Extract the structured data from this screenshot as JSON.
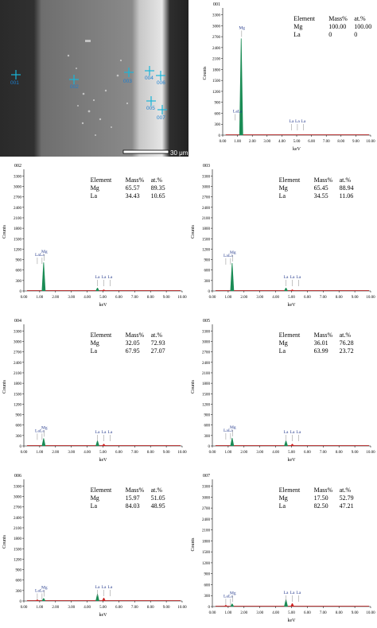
{
  "sem_image": {
    "scale_label": "30 μm",
    "points": [
      {
        "label": "001"
      },
      {
        "label": "002"
      },
      {
        "label": "003"
      },
      {
        "label": "004"
      },
      {
        "label": "005"
      },
      {
        "label": "006"
      },
      {
        "label": "007"
      }
    ],
    "colors": {
      "marker": "#19b6d9",
      "label": "#1b7fd0"
    }
  },
  "chart_data": [
    {
      "type": "bar",
      "panel_label": "001",
      "xlabel": "keV",
      "ylabel": "Counts",
      "x_ticks": [
        "0.00",
        "1.00",
        "2.00",
        "3.00",
        "4.00",
        "5.00",
        "6.00",
        "7.00",
        "8.00",
        "9.00",
        "10.00"
      ],
      "y_ticks": [
        "0",
        "300",
        "600",
        "900",
        "1200",
        "1500",
        "1800",
        "2100",
        "2400",
        "2700",
        "3000",
        "3300"
      ],
      "xlim": [
        0,
        10
      ],
      "ylim": [
        0,
        3400
      ],
      "table": {
        "header": [
          "Element",
          "Mass%",
          "at.%"
        ],
        "rows": [
          [
            "Mg",
            "100.00",
            "100.00"
          ],
          [
            "La",
            "0",
            "0"
          ]
        ]
      },
      "peaks": [
        {
          "label": "Mg",
          "x": 1.25,
          "counts": 2650,
          "color": "#1a8c55"
        }
      ],
      "line_markers": [
        {
          "label": "La",
          "x": 0.85
        },
        {
          "label": "La",
          "x": 1.15
        },
        {
          "label": "La",
          "x": 4.65
        },
        {
          "label": "La",
          "x": 5.05
        },
        {
          "label": "La",
          "x": 5.45
        }
      ]
    },
    {
      "type": "bar",
      "panel_label": "002",
      "xlabel": "keV",
      "ylabel": "Counts",
      "x_ticks": [
        "0.00",
        "1.00",
        "2.00",
        "3.00",
        "4.00",
        "5.00",
        "6.00",
        "7.00",
        "8.00",
        "9.00",
        "10.00"
      ],
      "y_ticks": [
        "0",
        "300",
        "600",
        "900",
        "1200",
        "1500",
        "1800",
        "2100",
        "2400",
        "2700",
        "3000",
        "3300"
      ],
      "xlim": [
        0,
        10
      ],
      "ylim": [
        0,
        3400
      ],
      "table": {
        "header": [
          "Element",
          "Mass%",
          "at.%"
        ],
        "rows": [
          [
            "Mg",
            "65.57",
            "89.35"
          ],
          [
            "La",
            "34.43",
            "10.65"
          ]
        ]
      },
      "peaks": [
        {
          "label": "Mg",
          "x": 1.25,
          "counts": 820,
          "color": "#1a8c55"
        },
        {
          "label": "La",
          "x": 4.65,
          "counts": 90,
          "color": "#1a8c55"
        },
        {
          "label": "La",
          "x": 5.05,
          "counts": 40,
          "color": "#cc2222"
        }
      ],
      "line_markers": [
        {
          "label": "La",
          "x": 0.85
        },
        {
          "label": "La",
          "x": 1.15
        },
        {
          "label": "La",
          "x": 4.65
        },
        {
          "label": "La",
          "x": 5.05
        },
        {
          "label": "La",
          "x": 5.45
        }
      ]
    },
    {
      "type": "bar",
      "panel_label": "003",
      "xlabel": "keV",
      "ylabel": "Counts",
      "x_ticks": [
        "0.00",
        "1.00",
        "2.00",
        "3.00",
        "4.00",
        "5.00",
        "6.00",
        "7.00",
        "8.00",
        "9.00",
        "10.00"
      ],
      "y_ticks": [
        "0",
        "300",
        "600",
        "900",
        "1200",
        "1500",
        "1800",
        "2100",
        "2400",
        "2700",
        "3000",
        "3300"
      ],
      "xlim": [
        0,
        10
      ],
      "ylim": [
        0,
        3400
      ],
      "table": {
        "header": [
          "Element",
          "Mass%",
          "at.%"
        ],
        "rows": [
          [
            "Mg",
            "65.45",
            "88.94"
          ],
          [
            "La",
            "34.55",
            "11.06"
          ]
        ]
      },
      "peaks": [
        {
          "label": "Mg",
          "x": 1.25,
          "counts": 800,
          "color": "#1a8c55"
        },
        {
          "label": "La",
          "x": 4.65,
          "counts": 90,
          "color": "#1a8c55"
        },
        {
          "label": "La",
          "x": 5.05,
          "counts": 40,
          "color": "#cc2222"
        }
      ],
      "line_markers": [
        {
          "label": "La",
          "x": 0.85
        },
        {
          "label": "La",
          "x": 1.15
        },
        {
          "label": "La",
          "x": 4.65
        },
        {
          "label": "La",
          "x": 5.05
        },
        {
          "label": "La",
          "x": 5.45
        }
      ]
    },
    {
      "type": "bar",
      "panel_label": "004",
      "xlabel": "keV",
      "ylabel": "Counts",
      "x_ticks": [
        "0.00",
        "1.00",
        "2.00",
        "3.00",
        "4.00",
        "5.00",
        "6.00",
        "7.00",
        "8.00",
        "9.00",
        "10.00"
      ],
      "y_ticks": [
        "0",
        "300",
        "600",
        "900",
        "1200",
        "1500",
        "1800",
        "2100",
        "2400",
        "2700",
        "3000",
        "3300"
      ],
      "xlim": [
        0,
        10
      ],
      "ylim": [
        0,
        3400
      ],
      "table": {
        "header": [
          "Element",
          "Mass%",
          "at.%"
        ],
        "rows": [
          [
            "Mg",
            "32.05",
            "72.93"
          ],
          [
            "La",
            "67.95",
            "27.07"
          ]
        ]
      },
      "peaks": [
        {
          "label": "Mg",
          "x": 1.25,
          "counts": 220,
          "color": "#1a8c55"
        },
        {
          "label": "La",
          "x": 4.65,
          "counts": 150,
          "color": "#1a8c55"
        },
        {
          "label": "La",
          "x": 5.05,
          "counts": 60,
          "color": "#cc2222"
        }
      ],
      "line_markers": [
        {
          "label": "La",
          "x": 0.85
        },
        {
          "label": "La",
          "x": 1.15
        },
        {
          "label": "La",
          "x": 4.65
        },
        {
          "label": "La",
          "x": 5.05
        },
        {
          "label": "La",
          "x": 5.45
        }
      ]
    },
    {
      "type": "bar",
      "panel_label": "005",
      "xlabel": "keV",
      "ylabel": "Counts",
      "x_ticks": [
        "0.00",
        "1.00",
        "2.00",
        "3.00",
        "4.00",
        "5.00",
        "6.00",
        "7.00",
        "8.00",
        "9.00",
        "10.00"
      ],
      "y_ticks": [
        "0",
        "300",
        "600",
        "900",
        "1200",
        "1500",
        "1800",
        "2100",
        "2400",
        "2700",
        "3000",
        "3300"
      ],
      "xlim": [
        0,
        10
      ],
      "ylim": [
        0,
        3400
      ],
      "table": {
        "header": [
          "Element",
          "Mass%",
          "at.%"
        ],
        "rows": [
          [
            "Mg",
            "36.01",
            "76.28"
          ],
          [
            "La",
            "63.99",
            "23.72"
          ]
        ]
      },
      "peaks": [
        {
          "label": "Mg",
          "x": 1.25,
          "counts": 230,
          "color": "#1a8c55"
        },
        {
          "label": "La",
          "x": 4.65,
          "counts": 150,
          "color": "#1a8c55"
        },
        {
          "label": "La",
          "x": 5.05,
          "counts": 60,
          "color": "#cc2222"
        }
      ],
      "line_markers": [
        {
          "label": "La",
          "x": 0.85
        },
        {
          "label": "La",
          "x": 1.15
        },
        {
          "label": "La",
          "x": 4.65
        },
        {
          "label": "La",
          "x": 5.05
        },
        {
          "label": "La",
          "x": 5.45
        }
      ]
    },
    {
      "type": "bar",
      "panel_label": "006",
      "xlabel": "keV",
      "ylabel": "Counts",
      "x_ticks": [
        "0.00",
        "1.00",
        "2.00",
        "3.00",
        "4.00",
        "5.00",
        "6.00",
        "7.00",
        "8.00",
        "9.00",
        "10.00"
      ],
      "y_ticks": [
        "0",
        "300",
        "600",
        "900",
        "1200",
        "1500",
        "1800",
        "2100",
        "2400",
        "2700",
        "3000",
        "3300"
      ],
      "xlim": [
        0,
        10
      ],
      "ylim": [
        0,
        3400
      ],
      "table": {
        "header": [
          "Element",
          "Mass%",
          "at.%"
        ],
        "rows": [
          [
            "Mg",
            "15.97",
            "51.05"
          ],
          [
            "La",
            "84.03",
            "48.95"
          ]
        ]
      },
      "peaks": [
        {
          "label": "Mg",
          "x": 1.25,
          "counts": 80,
          "color": "#1a8c55"
        },
        {
          "label": "La",
          "x": 0.85,
          "counts": 40,
          "color": "#cc2222"
        },
        {
          "label": "La",
          "x": 4.65,
          "counts": 200,
          "color": "#1a8c55"
        },
        {
          "label": "La",
          "x": 5.05,
          "counts": 90,
          "color": "#cc2222"
        }
      ],
      "line_markers": [
        {
          "label": "La",
          "x": 0.85
        },
        {
          "label": "La",
          "x": 1.15
        },
        {
          "label": "La",
          "x": 4.65
        },
        {
          "label": "La",
          "x": 5.05
        },
        {
          "label": "La",
          "x": 5.45
        }
      ]
    },
    {
      "type": "bar",
      "panel_label": "007",
      "xlabel": "keV",
      "ylabel": "Counts",
      "x_ticks": [
        "0.00",
        "1.00",
        "2.00",
        "3.00",
        "4.00",
        "5.00",
        "6.00",
        "7.00",
        "8.00",
        "9.00",
        "10.00"
      ],
      "y_ticks": [
        "0",
        "300",
        "600",
        "900",
        "1200",
        "1500",
        "1800",
        "2100",
        "2400",
        "2700",
        "3000",
        "3300"
      ],
      "xlim": [
        0,
        10
      ],
      "ylim": [
        0,
        3400
      ],
      "table": {
        "header": [
          "Element",
          "Mass%",
          "at.%"
        ],
        "rows": [
          [
            "Mg",
            "17.50",
            "52.79"
          ],
          [
            "La",
            "82.50",
            "47.21"
          ]
        ]
      },
      "peaks": [
        {
          "label": "Mg",
          "x": 1.25,
          "counts": 80,
          "color": "#1a8c55"
        },
        {
          "label": "La",
          "x": 0.85,
          "counts": 40,
          "color": "#cc2222"
        },
        {
          "label": "La",
          "x": 4.65,
          "counts": 190,
          "color": "#1a8c55"
        },
        {
          "label": "La",
          "x": 5.05,
          "counts": 90,
          "color": "#cc2222"
        }
      ],
      "line_markers": [
        {
          "label": "La",
          "x": 0.85
        },
        {
          "label": "La",
          "x": 1.15
        },
        {
          "label": "La",
          "x": 4.65
        },
        {
          "label": "La",
          "x": 5.05
        },
        {
          "label": "La",
          "x": 5.45
        }
      ]
    }
  ]
}
